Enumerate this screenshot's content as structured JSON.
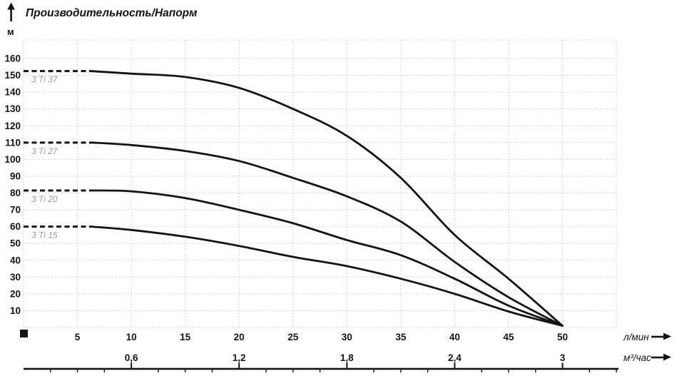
{
  "header": {
    "title": "Производительность/Напорм",
    "y_unit": "м"
  },
  "axis_units": {
    "flow_per_minute": "л/мин",
    "flow_per_hour": "м³/час"
  },
  "colors": {
    "curve": "#141414",
    "grid": "#cbcbcb",
    "text": "#141414",
    "series_label": "#9c9c9c",
    "background": "#ffffff"
  },
  "chart_data": {
    "type": "line",
    "title": "Производительность/Напорм",
    "ylabel": "м",
    "xlabel_primary": "л/мин",
    "xlabel_secondary": "м³/час",
    "xlim_lmin": [
      0,
      55
    ],
    "ylim_m": [
      0,
      171
    ],
    "grid": "dotted",
    "legend_position": "inline-curve-labels",
    "x_ticks_lmin": [
      5,
      10,
      15,
      20,
      25,
      30,
      35,
      40,
      45,
      50
    ],
    "x_ticks_m3h": [
      {
        "label": "0,6",
        "at_lmin": 10
      },
      {
        "label": "1,2",
        "at_lmin": 20
      },
      {
        "label": "1,8",
        "at_lmin": 30
      },
      {
        "label": "2,4",
        "at_lmin": 40
      },
      {
        "label": "3",
        "at_lmin": 50
      }
    ],
    "y_ticks": [
      10,
      20,
      30,
      40,
      50,
      60,
      70,
      80,
      90,
      100,
      110,
      120,
      130,
      140,
      150,
      160
    ],
    "dashed_head_until_lmin": 6.3,
    "series": [
      {
        "name": "3 Ti 37",
        "head_m": 152.5,
        "points_lmin_m": [
          [
            6.3,
            152.5
          ],
          [
            10,
            151
          ],
          [
            15,
            149
          ],
          [
            20,
            142.5
          ],
          [
            25,
            130
          ],
          [
            30,
            114
          ],
          [
            35,
            89
          ],
          [
            40,
            55
          ],
          [
            45,
            29
          ],
          [
            50,
            1
          ]
        ]
      },
      {
        "name": "3 Ti 27",
        "head_m": 110,
        "points_lmin_m": [
          [
            6.3,
            110
          ],
          [
            10,
            108.5
          ],
          [
            15,
            105
          ],
          [
            20,
            99
          ],
          [
            25,
            89
          ],
          [
            30,
            78
          ],
          [
            35,
            63
          ],
          [
            40,
            39
          ],
          [
            45,
            18
          ],
          [
            50,
            1
          ]
        ]
      },
      {
        "name": "3 Ti 20",
        "head_m": 81.5,
        "points_lmin_m": [
          [
            6.3,
            81.5
          ],
          [
            10,
            81
          ],
          [
            15,
            77
          ],
          [
            20,
            70
          ],
          [
            25,
            62
          ],
          [
            30,
            52
          ],
          [
            35,
            43
          ],
          [
            40,
            29
          ],
          [
            45,
            13
          ],
          [
            50,
            1
          ]
        ]
      },
      {
        "name": "3 Ti 15",
        "head_m": 60,
        "points_lmin_m": [
          [
            6.3,
            60
          ],
          [
            10,
            58
          ],
          [
            15,
            54
          ],
          [
            20,
            48.5
          ],
          [
            25,
            42
          ],
          [
            30,
            36.5
          ],
          [
            35,
            29
          ],
          [
            40,
            20
          ],
          [
            45,
            9.5
          ],
          [
            50,
            1
          ]
        ]
      }
    ]
  }
}
